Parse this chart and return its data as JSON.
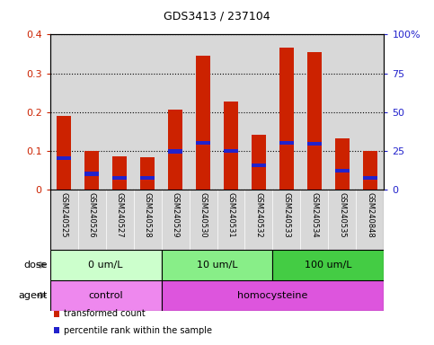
{
  "title": "GDS3413 / 237104",
  "samples": [
    "GSM240525",
    "GSM240526",
    "GSM240527",
    "GSM240528",
    "GSM240529",
    "GSM240530",
    "GSM240531",
    "GSM240532",
    "GSM240533",
    "GSM240534",
    "GSM240535",
    "GSM240848"
  ],
  "transformed_count": [
    0.19,
    0.1,
    0.085,
    0.082,
    0.205,
    0.345,
    0.228,
    0.14,
    0.365,
    0.355,
    0.132,
    0.1
  ],
  "percentile_rank": [
    0.08,
    0.04,
    0.03,
    0.03,
    0.098,
    0.12,
    0.1,
    0.063,
    0.12,
    0.118,
    0.048,
    0.03
  ],
  "bar_color": "#cc2200",
  "percentile_color": "#2222cc",
  "ylim_left": [
    0,
    0.4
  ],
  "ylim_right": [
    0,
    100
  ],
  "yticks_left": [
    0,
    0.1,
    0.2,
    0.3,
    0.4
  ],
  "yticks_right": [
    0,
    25,
    50,
    75,
    100
  ],
  "ytick_labels_left": [
    "0",
    "0.1",
    "0.2",
    "0.3",
    "0.4"
  ],
  "ytick_labels_right": [
    "0",
    "25",
    "50",
    "75",
    "100%"
  ],
  "dose_groups": [
    {
      "label": "0 um/L",
      "start": 0,
      "end": 4,
      "color": "#ccffcc"
    },
    {
      "label": "10 um/L",
      "start": 4,
      "end": 8,
      "color": "#88ee88"
    },
    {
      "label": "100 um/L",
      "start": 8,
      "end": 12,
      "color": "#44cc44"
    }
  ],
  "agent_groups": [
    {
      "label": "control",
      "start": 0,
      "end": 4,
      "color": "#ee88ee"
    },
    {
      "label": "homocysteine",
      "start": 4,
      "end": 12,
      "color": "#dd55dd"
    }
  ],
  "dose_label": "dose",
  "agent_label": "agent",
  "legend_items": [
    {
      "color": "#cc2200",
      "label": "transformed count"
    },
    {
      "color": "#2222cc",
      "label": "percentile rank within the sample"
    }
  ],
  "background_color": "#ffffff",
  "plot_bg_color": "#d8d8d8",
  "bar_width": 0.5,
  "blue_bar_height": 0.01
}
